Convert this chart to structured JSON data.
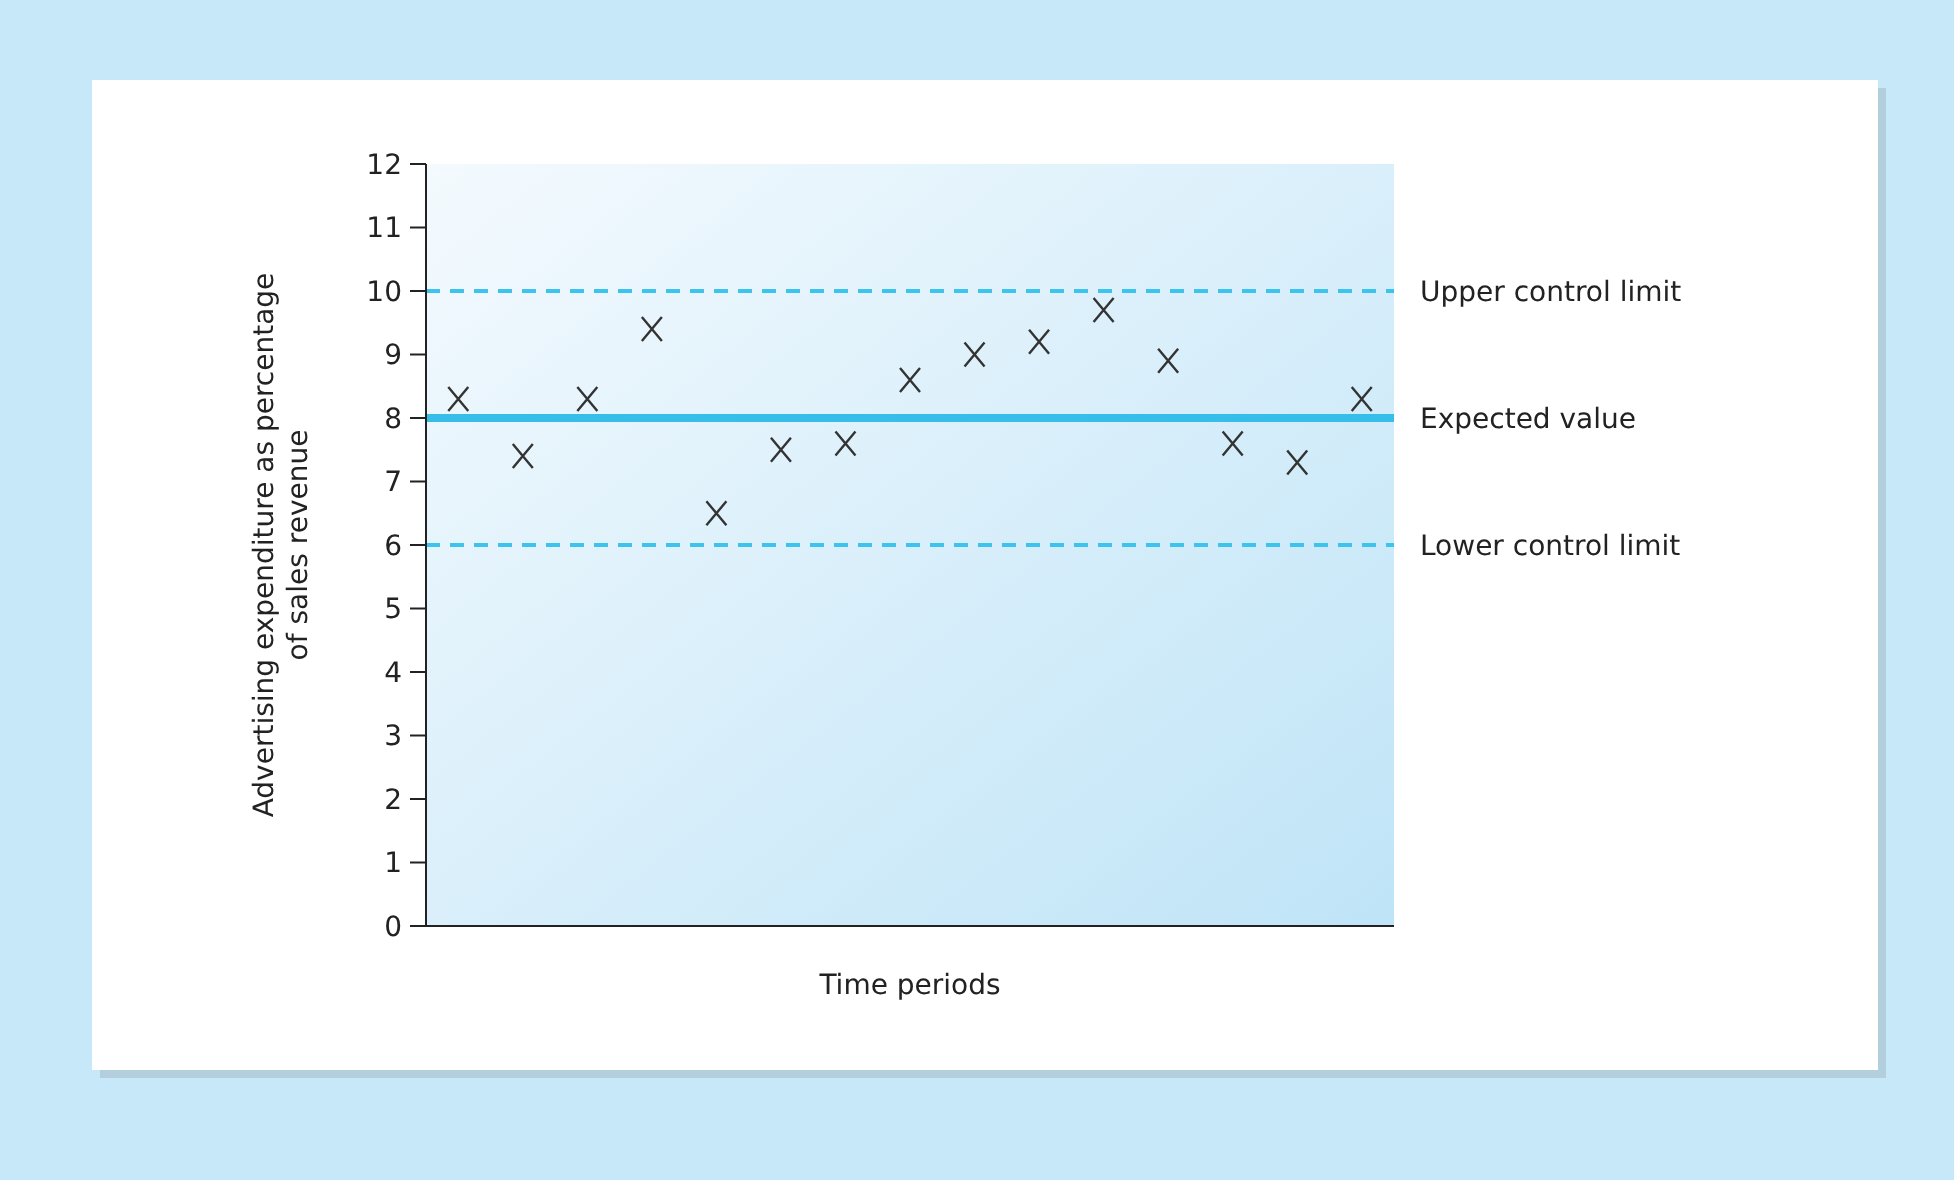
{
  "chart_data": {
    "type": "scatter",
    "xlabel": "Time periods",
    "ylabel": "Advertising expenditure as percentage of sales revenue",
    "categories": [
      null,
      null,
      null,
      null,
      null,
      null,
      null,
      null,
      null,
      null,
      null,
      null,
      null,
      null,
      null
    ],
    "series": [
      {
        "color": "#333333",
        "values": [
          8.3,
          7.4,
          8.3,
          9.4,
          6.5,
          7.5,
          7.6,
          8.6,
          9.0,
          9.2,
          9.7,
          8.9,
          7.6,
          7.3,
          8.3
        ]
      }
    ],
    "marker": "cross",
    "ylim": [
      0,
      12
    ],
    "yticks": [
      0,
      1,
      2,
      3,
      4,
      5,
      6,
      7,
      8,
      9,
      10,
      11,
      12
    ],
    "grid": false,
    "ref_lines": [
      {
        "axis": "y",
        "value": 10,
        "label": "Upper control limit",
        "color": "#3cc3ee",
        "line_style": "dashed"
      },
      {
        "axis": "y",
        "value": 8,
        "label": "Expected value",
        "color": "#36bdea",
        "line_style": "solid"
      },
      {
        "axis": "y",
        "value": 6,
        "label": "Lower control limit",
        "color": "#3cc3ee",
        "line_style": "dashed"
      }
    ]
  }
}
